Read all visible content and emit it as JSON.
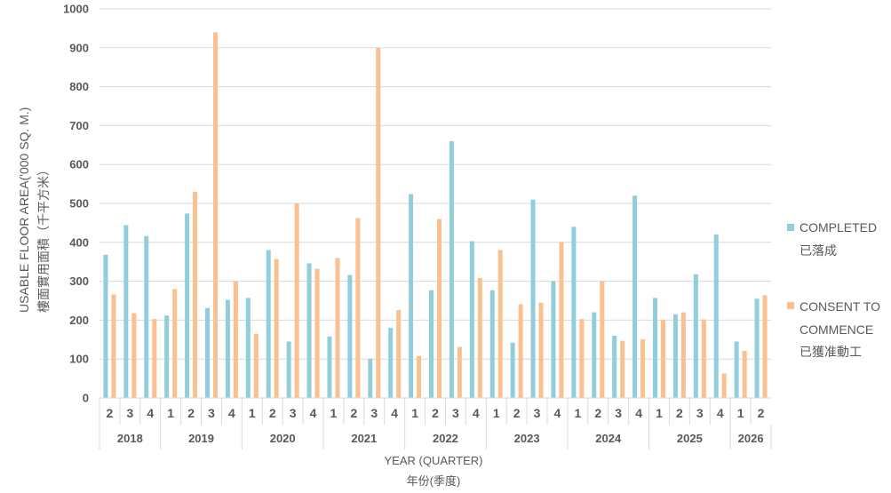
{
  "chart_data": {
    "type": "bar",
    "ylabel": "USABLE FLOOR AREA('000 SQ. M.)",
    "ylabel_zh": "樓面實用面積（千平方米）",
    "xlabel": "YEAR (QUARTER)",
    "xlabel_zh": "年份(季度)",
    "ylim": [
      0,
      1000
    ],
    "yticks": [
      0,
      100,
      200,
      300,
      400,
      500,
      600,
      700,
      800,
      900,
      1000
    ],
    "grid": true,
    "legend_position": "right",
    "year_groups": [
      {
        "year": "2018",
        "quarters": [
          "2",
          "3",
          "4"
        ]
      },
      {
        "year": "2019",
        "quarters": [
          "1",
          "2",
          "3",
          "4"
        ]
      },
      {
        "year": "2020",
        "quarters": [
          "1",
          "2",
          "3",
          "4"
        ]
      },
      {
        "year": "2021",
        "quarters": [
          "1",
          "2",
          "3",
          "4"
        ]
      },
      {
        "year": "2022",
        "quarters": [
          "1",
          "2",
          "3",
          "4"
        ]
      },
      {
        "year": "2023",
        "quarters": [
          "1",
          "2",
          "3",
          "4"
        ]
      },
      {
        "year": "2024",
        "quarters": [
          "1",
          "2",
          "3",
          "4"
        ]
      },
      {
        "year": "2025",
        "quarters": [
          "1",
          "2",
          "3",
          "4"
        ]
      },
      {
        "year": "2026",
        "quarters": [
          "1",
          "2"
        ]
      }
    ],
    "series": [
      {
        "name": "COMPLETED",
        "name_zh": "已落成",
        "color": "#92CDDC",
        "values": [
          368,
          444,
          416,
          212,
          474,
          231,
          252,
          257,
          380,
          145,
          346,
          158,
          316,
          101,
          180,
          524,
          277,
          660,
          403,
          277,
          142,
          510,
          300,
          440,
          220,
          160,
          520,
          257,
          215,
          318,
          420,
          145,
          255
        ]
      },
      {
        "name": "CONSENT TO COMMENCE",
        "name_zh": "已獲准動工",
        "color": "#FAC090",
        "values": [
          266,
          218,
          203,
          280,
          530,
          940,
          300,
          165,
          357,
          500,
          332,
          360,
          462,
          900,
          226,
          108,
          460,
          131,
          308,
          380,
          241,
          245,
          401,
          203,
          300,
          147,
          151,
          201,
          220,
          202,
          63,
          121,
          264
        ]
      }
    ]
  }
}
